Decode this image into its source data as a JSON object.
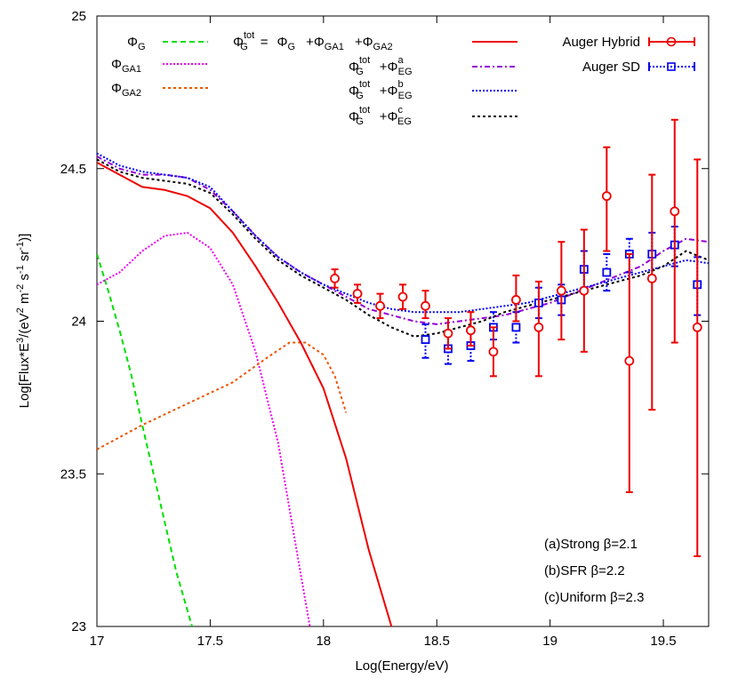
{
  "chart_data": {
    "type": "line",
    "xlabel": "Log(Energy/eV)",
    "ylabel": "Log[Flux*E3/(eV2 m-2 s-1 sr-1)]",
    "ylabel_parts": {
      "a": "Log[Flux*E",
      "b": "3",
      "c": "/(eV",
      "d": "2",
      "e": " m",
      "f": "-2",
      "g": " s",
      "h": "-1",
      "i": " sr",
      "j": "-1",
      "k": ")]"
    },
    "xlim": [
      17,
      19.7
    ],
    "ylim": [
      23,
      25
    ],
    "xticks": [
      "17",
      "17.5",
      "18",
      "18.5",
      "19",
      "19.5"
    ],
    "yticks": [
      "23",
      "23.5",
      "24",
      "24.5",
      "25"
    ],
    "grid": false,
    "legend": {
      "phi": "Φ",
      "G": "G",
      "GA1": "GA1",
      "GA2": "GA2",
      "EG": "EG",
      "tot": "tot",
      "a": "a",
      "b": "b",
      "c": "c",
      "eq": "=",
      "plus": "+",
      "hybrid": "Auger Hybrid",
      "sd": "Auger SD"
    },
    "annotations": [
      "(a)Strong β=2.1",
      "(b)SFR β=2.2",
      "(c)Uniform β=2.3"
    ],
    "colors": {
      "G": "#00dd00",
      "GA1": "#ee00ee",
      "GA2": "#ee5500",
      "tot": "#ee0000",
      "EGa": "#9400d3",
      "EGb": "#0000ee",
      "EGc": "#000000",
      "hybrid": "#ee0000",
      "sd": "#0000ee"
    },
    "series": [
      {
        "name": "Φ_G",
        "style": "dashed",
        "color_key": "G",
        "x": [
          17.0,
          17.05,
          17.1,
          17.15,
          17.2,
          17.25,
          17.3,
          17.35,
          17.42
        ],
        "y": [
          24.22,
          24.1,
          23.97,
          23.83,
          23.66,
          23.5,
          23.34,
          23.18,
          23.0
        ]
      },
      {
        "name": "Φ_GA1",
        "style": "dotted",
        "color_key": "GA1",
        "x": [
          17.0,
          17.1,
          17.2,
          17.3,
          17.4,
          17.5,
          17.6,
          17.7,
          17.8,
          17.9,
          17.94
        ],
        "y": [
          24.12,
          24.16,
          24.23,
          24.28,
          24.29,
          24.24,
          24.12,
          23.9,
          23.6,
          23.17,
          23.0
        ]
      },
      {
        "name": "Φ_GA2",
        "style": "dotted",
        "color_key": "GA2",
        "x": [
          17.0,
          17.2,
          17.4,
          17.6,
          17.75,
          17.85,
          17.92,
          18.0,
          18.05,
          18.1
        ],
        "y": [
          23.58,
          23.66,
          23.73,
          23.8,
          23.88,
          23.93,
          23.93,
          23.89,
          23.82,
          23.7
        ]
      },
      {
        "name": "Φ_G^tot = Φ_G + Φ_GA1 + Φ_GA2",
        "style": "solid",
        "color_key": "tot",
        "x": [
          17.0,
          17.1,
          17.2,
          17.3,
          17.4,
          17.5,
          17.6,
          17.7,
          17.8,
          17.9,
          18.0,
          18.1,
          18.2,
          18.3,
          18.36
        ],
        "y": [
          24.52,
          24.48,
          24.44,
          24.43,
          24.41,
          24.37,
          24.29,
          24.18,
          24.06,
          23.93,
          23.78,
          23.55,
          23.25,
          23.0,
          22.95
        ]
      },
      {
        "name": "Φ_G^tot + Φ_EG^a",
        "style": "dashdot",
        "color_key": "EGa",
        "x": [
          17.0,
          17.1,
          17.2,
          17.3,
          17.4,
          17.5,
          17.6,
          17.7,
          17.8,
          17.9,
          18.0,
          18.1,
          18.2,
          18.3,
          18.4,
          18.5,
          18.6,
          18.7,
          18.8,
          18.9,
          19.0,
          19.1,
          19.2,
          19.3,
          19.4,
          19.5,
          19.6,
          19.7
        ],
        "y": [
          24.54,
          24.5,
          24.48,
          24.48,
          24.47,
          24.43,
          24.36,
          24.28,
          24.21,
          24.16,
          24.12,
          24.08,
          24.04,
          24.02,
          24.0,
          23.99,
          24.0,
          24.01,
          24.02,
          24.04,
          24.06,
          24.09,
          24.12,
          24.15,
          24.18,
          24.23,
          24.27,
          24.26
        ]
      },
      {
        "name": "Φ_G^tot + Φ_EG^b",
        "style": "dotted",
        "color_key": "EGb",
        "x": [
          17.0,
          17.1,
          17.2,
          17.3,
          17.4,
          17.5,
          17.6,
          17.7,
          17.8,
          17.9,
          18.0,
          18.1,
          18.2,
          18.3,
          18.4,
          18.5,
          18.6,
          18.7,
          18.8,
          18.9,
          19.0,
          19.1,
          19.2,
          19.3,
          19.4,
          19.5,
          19.6,
          19.7
        ],
        "y": [
          24.55,
          24.51,
          24.49,
          24.48,
          24.47,
          24.44,
          24.36,
          24.28,
          24.21,
          24.16,
          24.12,
          24.09,
          24.06,
          24.04,
          24.03,
          24.03,
          24.03,
          24.04,
          24.05,
          24.06,
          24.08,
          24.1,
          24.12,
          24.14,
          24.16,
          24.18,
          24.2,
          24.19
        ]
      },
      {
        "name": "Φ_G^tot + Φ_EG^c",
        "style": "dotted",
        "color_key": "EGc",
        "x": [
          17.0,
          17.1,
          17.2,
          17.3,
          17.4,
          17.5,
          17.6,
          17.7,
          17.8,
          17.9,
          18.0,
          18.1,
          18.2,
          18.3,
          18.4,
          18.5,
          18.6,
          18.7,
          18.8,
          18.9,
          19.0,
          19.1,
          19.2,
          19.3,
          19.4,
          19.5,
          19.6,
          19.7
        ],
        "y": [
          24.53,
          24.49,
          24.47,
          24.46,
          24.45,
          24.42,
          24.35,
          24.27,
          24.2,
          24.15,
          24.11,
          24.07,
          24.02,
          23.98,
          23.95,
          23.96,
          23.98,
          24.0,
          24.03,
          24.05,
          24.07,
          24.09,
          24.11,
          24.13,
          24.15,
          24.18,
          24.23,
          24.2
        ]
      }
    ],
    "hybrid": {
      "x": [
        18.05,
        18.15,
        18.25,
        18.35,
        18.45,
        18.55,
        18.65,
        18.75,
        18.85,
        18.95,
        19.05,
        19.15,
        19.25,
        19.35,
        19.45,
        19.55,
        19.65
      ],
      "y": [
        24.14,
        24.09,
        24.05,
        24.08,
        24.05,
        23.96,
        23.97,
        23.9,
        24.07,
        23.98,
        24.1,
        24.1,
        24.41,
        23.87,
        24.14,
        24.36,
        23.98
      ],
      "lo": [
        24.11,
        24.06,
        24.01,
        24.04,
        24.01,
        23.91,
        23.92,
        23.82,
        24.0,
        23.82,
        23.94,
        23.9,
        24.23,
        23.44,
        23.71,
        23.93,
        23.23
      ],
      "hi": [
        24.17,
        24.12,
        24.09,
        24.12,
        24.1,
        24.01,
        24.03,
        23.98,
        24.15,
        24.13,
        24.26,
        24.3,
        24.57,
        24.22,
        24.48,
        24.66,
        24.53
      ]
    },
    "sd": {
      "x": [
        18.45,
        18.55,
        18.65,
        18.75,
        18.85,
        18.95,
        19.05,
        19.15,
        19.25,
        19.35,
        19.45,
        19.55,
        19.65
      ],
      "y": [
        23.94,
        23.91,
        23.92,
        23.98,
        23.98,
        24.06,
        24.07,
        24.17,
        24.16,
        24.22,
        24.22,
        24.25,
        24.12
      ],
      "lo": [
        23.88,
        23.86,
        23.87,
        23.94,
        23.93,
        24.01,
        24.02,
        24.11,
        24.1,
        24.16,
        24.15,
        24.18,
        24.02
      ],
      "hi": [
        23.99,
        23.96,
        23.97,
        24.03,
        24.03,
        24.11,
        24.12,
        24.23,
        24.22,
        24.27,
        24.29,
        24.31,
        24.21
      ]
    }
  }
}
